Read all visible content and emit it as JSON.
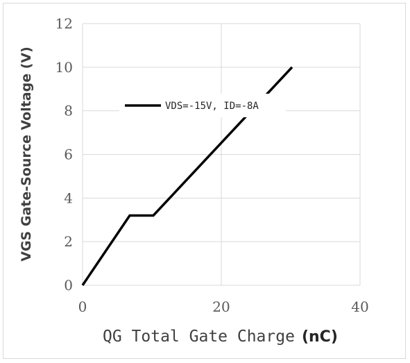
{
  "chart_data": {
    "type": "line",
    "xlabel_main": "QG Total Gate Charge",
    "xlabel_unit": "(nC)",
    "ylabel": "VGS Gate-Source Voltage (V)",
    "xlim": [
      0,
      40
    ],
    "ylim": [
      0,
      12
    ],
    "xticks": [
      0,
      20,
      40
    ],
    "yticks": [
      0,
      2,
      4,
      6,
      8,
      10,
      12
    ],
    "grid": true,
    "legend_position": "upper-left-inside",
    "series": [
      {
        "name": "VDS=-15V, ID=-8A",
        "color": "#000000",
        "x": [
          0,
          6.8,
          10.2,
          30.2
        ],
        "y": [
          0,
          3.2,
          3.2,
          10.0
        ]
      }
    ]
  }
}
